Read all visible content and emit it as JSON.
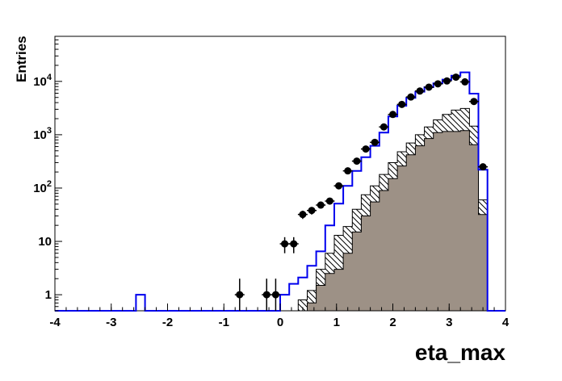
{
  "chart_data": {
    "type": "bar",
    "subtype": "root-histogram-overlay-log-y",
    "title": "",
    "xlabel": "eta_max",
    "ylabel": "Entries",
    "x_range": [
      -4,
      4
    ],
    "y_range": [
      0.5,
      70000
    ],
    "y_scale": "log",
    "grid": false,
    "legend": "none",
    "bin_width": 0.16,
    "x_major_ticks": [
      -4,
      -3,
      -2,
      -1,
      0,
      1,
      2,
      3,
      4
    ],
    "x_minor_tick_step": 0.2,
    "y_major_ticks": [
      1,
      10,
      100,
      1000,
      10000
    ],
    "y_tick_labels": [
      [
        "1"
      ],
      [
        "10"
      ],
      [
        "10",
        "2"
      ],
      [
        "10",
        "3"
      ],
      [
        "10",
        "4"
      ]
    ],
    "error_bars": "poisson-sqrt(N)",
    "colors": {
      "data_marker": "#000000",
      "line_histogram": "#0000ee",
      "hatched_fill": "#ffffff",
      "hatch_lines": "#000000",
      "gray_fill": "#9d9186",
      "frame": "#000000"
    },
    "series": [
      {
        "name": "data-points",
        "style": "marker-errorbar",
        "centers": [
          -0.72,
          -0.24,
          -0.08,
          0.08,
          0.24,
          0.4,
          0.56,
          0.72,
          0.88,
          1.04,
          1.2,
          1.36,
          1.52,
          1.68,
          1.84,
          2.0,
          2.16,
          2.32,
          2.48,
          2.64,
          2.8,
          2.96,
          3.12,
          3.28,
          3.44,
          3.6
        ],
        "values": [
          1,
          1,
          1,
          9,
          9,
          32,
          38,
          48,
          57,
          110,
          210,
          320,
          540,
          720,
          1400,
          2400,
          3700,
          5100,
          6600,
          7800,
          9000,
          10200,
          12000,
          9800,
          4200,
          250
        ]
      },
      {
        "name": "mc-total-blue",
        "style": "step-line",
        "centers": [
          -2.48,
          0.08,
          0.24,
          0.4,
          0.56,
          0.72,
          0.88,
          1.04,
          1.2,
          1.36,
          1.52,
          1.68,
          1.84,
          2.0,
          2.16,
          2.32,
          2.48,
          2.64,
          2.8,
          2.96,
          3.12,
          3.28,
          3.44,
          3.6
        ],
        "values": [
          1,
          1,
          1.6,
          2.1,
          3.5,
          6.5,
          20,
          51,
          110,
          210,
          380,
          620,
          1100,
          2200,
          3500,
          4900,
          6400,
          7800,
          9200,
          10800,
          12800,
          14800,
          5900,
          220
        ]
      },
      {
        "name": "mc-component-hatched",
        "style": "filled-hatched",
        "centers": [
          0.4,
          0.56,
          0.72,
          0.88,
          1.04,
          1.2,
          1.36,
          1.52,
          1.68,
          1.84,
          2.0,
          2.16,
          2.32,
          2.48,
          2.64,
          2.8,
          2.96,
          3.12,
          3.28,
          3.44,
          3.6
        ],
        "values": [
          0.8,
          1.2,
          3,
          6,
          13,
          19,
          40,
          75,
          110,
          180,
          300,
          480,
          700,
          1000,
          1400,
          1900,
          2400,
          2900,
          3100,
          1450,
          60
        ]
      },
      {
        "name": "mc-component-gray",
        "style": "filled-solid",
        "centers": [
          0.56,
          0.72,
          0.88,
          1.04,
          1.2,
          1.36,
          1.52,
          1.68,
          1.84,
          2.0,
          2.16,
          2.32,
          2.48,
          2.64,
          2.8,
          2.96,
          3.12,
          3.28,
          3.44,
          3.6
        ],
        "values": [
          0.7,
          1.5,
          2.5,
          3,
          6,
          15,
          30,
          55,
          90,
          150,
          260,
          420,
          620,
          850,
          1100,
          1150,
          1150,
          1200,
          650,
          32
        ]
      }
    ]
  }
}
